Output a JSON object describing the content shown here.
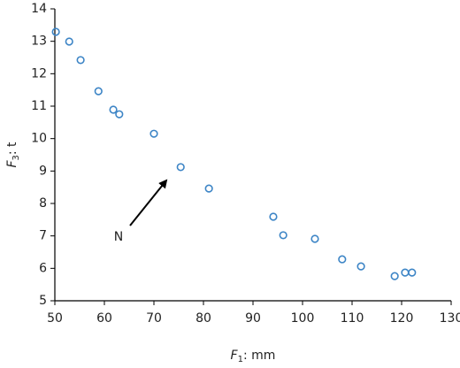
{
  "chart_data": {
    "type": "scatter",
    "x_label": {
      "symbol": "F",
      "subscript": "1",
      "unit": ": mm"
    },
    "y_label": {
      "symbol": "F",
      "subscript": "3",
      "unit": ": t"
    },
    "annotation": "N",
    "color": "#3d85c6",
    "grid": false,
    "x": [
      50.2,
      52.9,
      55.2,
      58.8,
      61.8,
      63.0,
      70.0,
      75.4,
      81.1,
      94.1,
      96.1,
      102.5,
      108.0,
      111.8,
      118.6,
      120.7,
      122.1
    ],
    "y": [
      13.29,
      12.99,
      12.42,
      11.46,
      10.89,
      10.75,
      10.15,
      9.12,
      8.46,
      7.59,
      7.02,
      6.91,
      6.28,
      6.06,
      5.76,
      5.87,
      5.87
    ],
    "xlim": [
      50,
      130
    ],
    "xticks": [
      50,
      60,
      70,
      80,
      90,
      100,
      110,
      120,
      130
    ],
    "ylim": [
      5,
      14
    ],
    "yticks": [
      5,
      6,
      7,
      8,
      9,
      10,
      11,
      12,
      13,
      14
    ]
  }
}
